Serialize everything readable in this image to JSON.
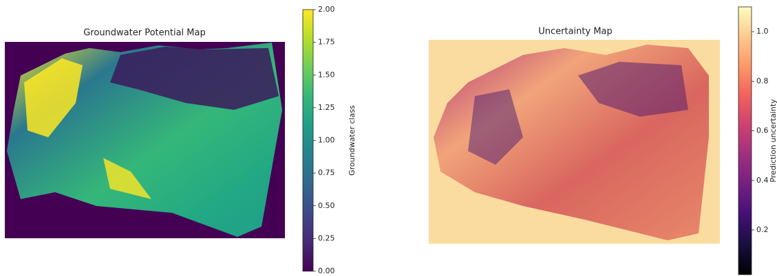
{
  "chart_data": [
    {
      "type": "image",
      "title": "Groundwater Potential Map",
      "colormap": "viridis",
      "colorbar_label": "Groundwater class",
      "clim": [
        0,
        2
      ],
      "cticks": [
        {
          "value": 0,
          "label": "0.00"
        },
        {
          "value": 0.25,
          "label": "0.25"
        },
        {
          "value": 0.5,
          "label": "0.50"
        },
        {
          "value": 0.75,
          "label": "0.75"
        },
        {
          "value": 1,
          "label": "1.00"
        },
        {
          "value": 1.25,
          "label": "1.25"
        },
        {
          "value": 1.5,
          "label": "1.50"
        },
        {
          "value": 1.75,
          "label": "1.75"
        },
        {
          "value": 2,
          "label": "2.00"
        }
      ]
    },
    {
      "type": "image",
      "title": "Uncertainty Map",
      "colormap": "magma",
      "colorbar_label": "Prediction uncertainty",
      "clim": [
        0.02,
        1.1
      ],
      "cticks": [
        0.2,
        0.4,
        0.6,
        0.8,
        {
          "value": 1,
          "label": "1.0"
        }
      ]
    }
  ]
}
